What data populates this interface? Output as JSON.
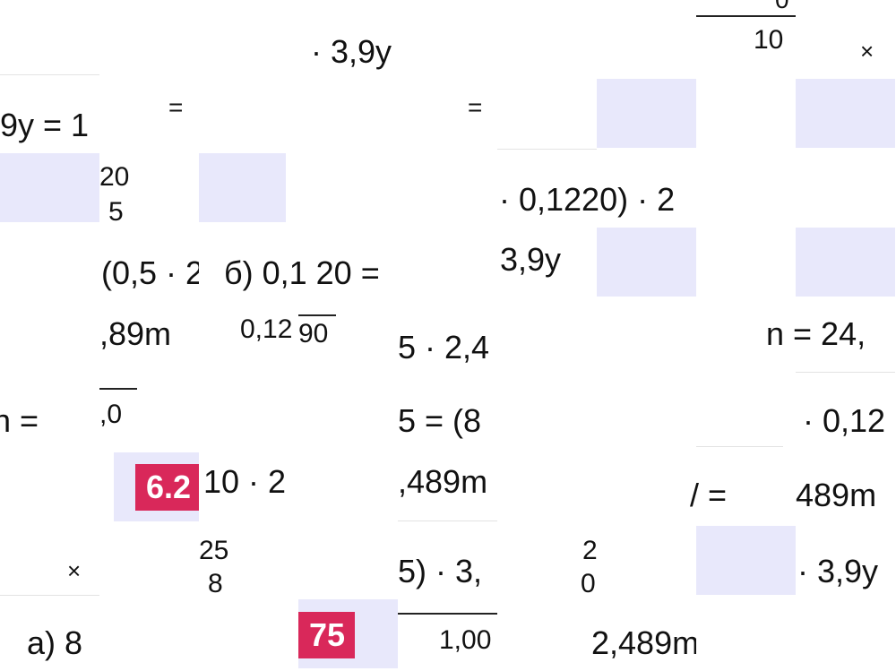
{
  "fragments": [
    "· 3,9y",
    "0",
    "10",
    "×",
    "9y = 1",
    "=",
    "=",
    "20",
    "5",
    "· 0,1220) · 2",
    "(0,5 · 2",
    "б) 0,1 20 =",
    "3,9y",
    "0,12",
    "90",
    ",89m",
    "5 · 2,4",
    "n = 24,",
    "n =",
    ",0",
    "5 = (8",
    "· 0,12",
    "10 · 2",
    ",489m",
    "/ =",
    "489m",
    "25",
    "8",
    "×",
    "5) · 3,",
    "2",
    "0",
    "· 3,9y",
    "а) 8",
    "1,00",
    "2,489m"
  ],
  "badges": [
    "6.2",
    "75"
  ]
}
